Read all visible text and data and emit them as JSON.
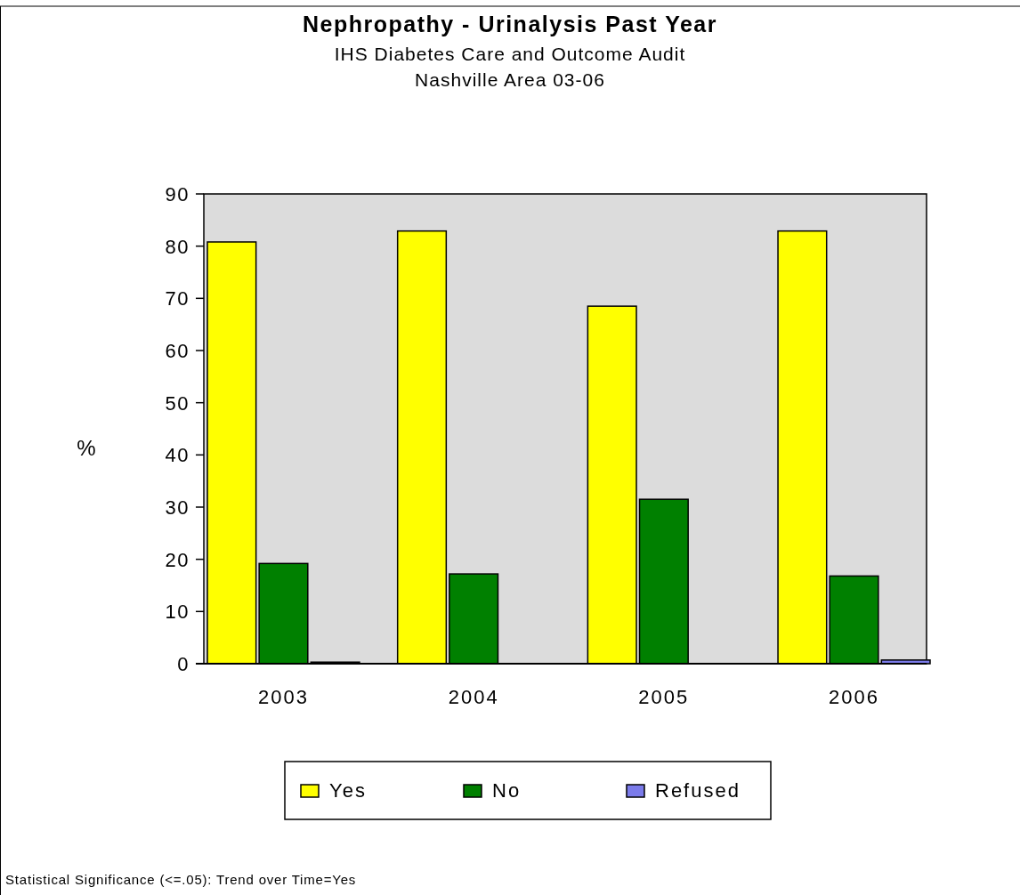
{
  "chart_data": {
    "type": "bar",
    "title": "Nephropathy - Urinalysis Past Year",
    "subtitle": "IHS Diabetes Care and Outcome Audit\nNashville Area 03-06",
    "ylabel": "%",
    "categories": [
      "2003",
      "2004",
      "2005",
      "2006"
    ],
    "series": [
      {
        "name": "Yes",
        "color": "#ffff00",
        "values": [
          80.8,
          82.9,
          68.5,
          82.9
        ]
      },
      {
        "name": "No",
        "color": "#008000",
        "values": [
          19.2,
          17.2,
          31.5,
          16.8
        ]
      },
      {
        "name": "Refused",
        "color": "#7b7bea",
        "values": [
          0.3,
          0,
          0,
          0.7
        ]
      }
    ],
    "ylim": [
      0,
      90
    ],
    "yticks": [
      0,
      10,
      20,
      30,
      40,
      50,
      60,
      70,
      80,
      90
    ],
    "grid": false,
    "legend": "bottom",
    "annotations": [
      "Statistical Significance (<=.05): Trend over Time=Yes"
    ]
  }
}
